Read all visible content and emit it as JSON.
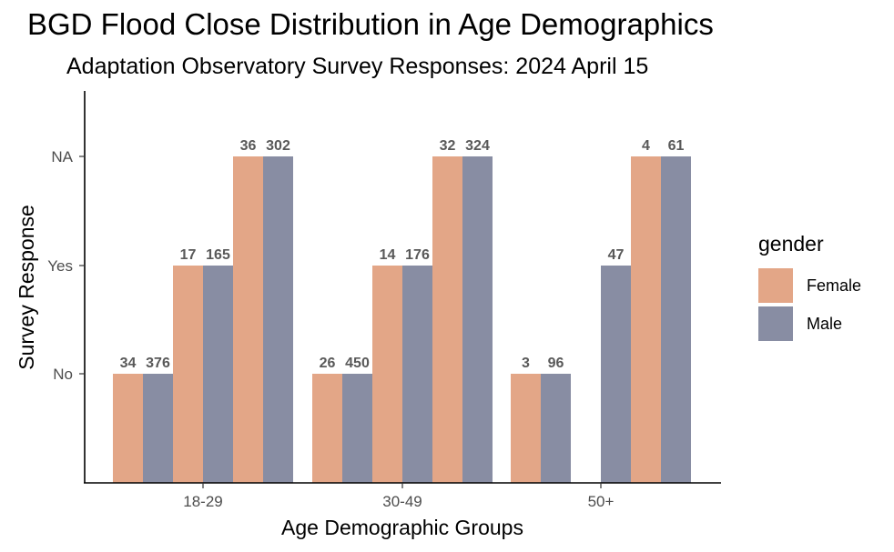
{
  "chart_data": {
    "type": "bar",
    "title": "BGD Flood Close Distribution in Age Demographics",
    "subtitle": "Adaptation Observatory Survey Responses: 2024 April 15",
    "xlabel": "Age Demographic Groups",
    "ylabel": "Survey Response",
    "categories": [
      "18-29",
      "30-49",
      "50+"
    ],
    "y_levels": [
      "No",
      "Yes",
      "NA"
    ],
    "legend": {
      "title": "gender",
      "position": "right",
      "entries": [
        {
          "name": "Female",
          "color": "#e3a687"
        },
        {
          "name": "Male",
          "color": "#888da3"
        }
      ]
    },
    "grid": false,
    "bars": [
      {
        "group": "18-29",
        "response": "No",
        "gender": "Female",
        "count": 34
      },
      {
        "group": "18-29",
        "response": "No",
        "gender": "Male",
        "count": 376
      },
      {
        "group": "18-29",
        "response": "Yes",
        "gender": "Female",
        "count": 17
      },
      {
        "group": "18-29",
        "response": "Yes",
        "gender": "Male",
        "count": 165
      },
      {
        "group": "18-29",
        "response": "NA",
        "gender": "Female",
        "count": 36
      },
      {
        "group": "18-29",
        "response": "NA",
        "gender": "Male",
        "count": 302
      },
      {
        "group": "30-49",
        "response": "No",
        "gender": "Female",
        "count": 26
      },
      {
        "group": "30-49",
        "response": "No",
        "gender": "Male",
        "count": 450
      },
      {
        "group": "30-49",
        "response": "Yes",
        "gender": "Female",
        "count": 14
      },
      {
        "group": "30-49",
        "response": "Yes",
        "gender": "Male",
        "count": 176
      },
      {
        "group": "30-49",
        "response": "NA",
        "gender": "Female",
        "count": 32
      },
      {
        "group": "30-49",
        "response": "NA",
        "gender": "Male",
        "count": 324
      },
      {
        "group": "50+",
        "response": "No",
        "gender": "Female",
        "count": 3
      },
      {
        "group": "50+",
        "response": "No",
        "gender": "Male",
        "count": 96
      },
      {
        "group": "50+",
        "response": "Yes",
        "gender": "Male",
        "count": 47
      },
      {
        "group": "50+",
        "response": "NA",
        "gender": "Female",
        "count": 4
      },
      {
        "group": "50+",
        "response": "NA",
        "gender": "Male",
        "count": 61
      }
    ]
  }
}
